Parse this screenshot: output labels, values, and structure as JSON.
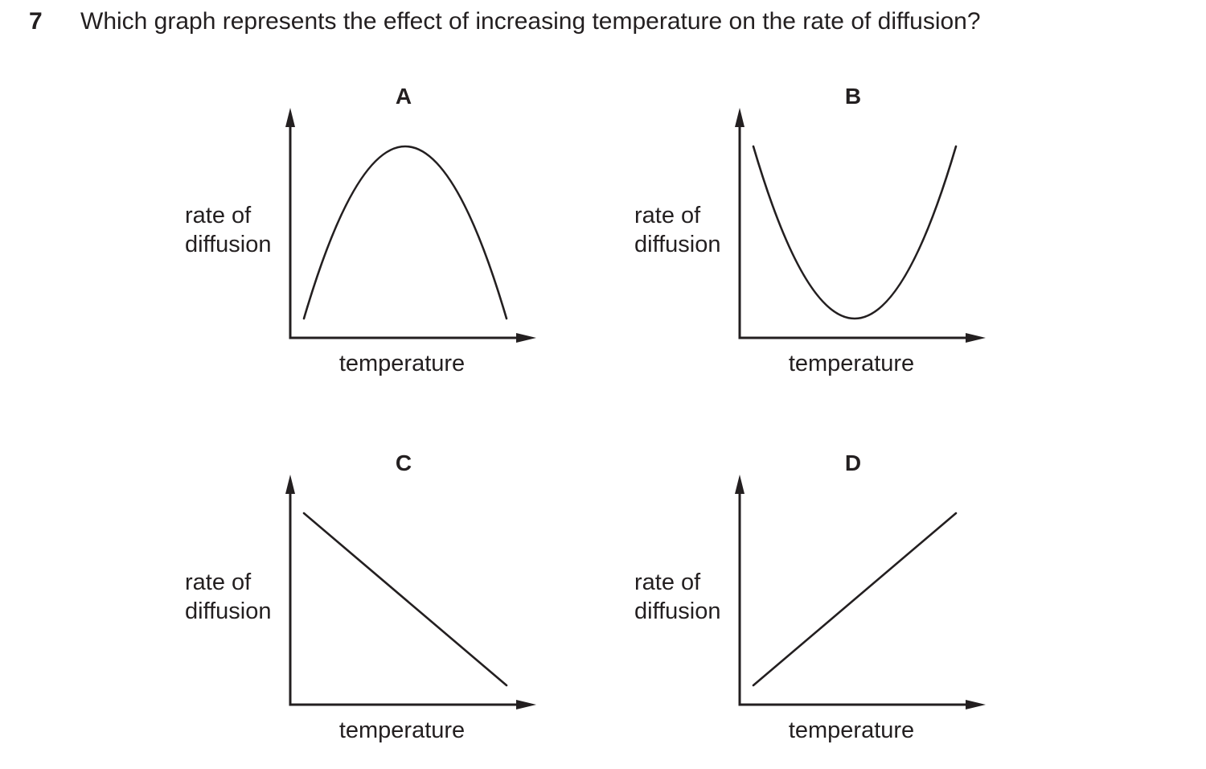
{
  "question": {
    "number": "7",
    "text": "Which graph represents the effect of increasing temperature on the rate of diffusion?"
  },
  "chart_data": [
    {
      "type": "line",
      "title": "A",
      "xlabel": "temperature",
      "ylabel_lines": [
        "rate of",
        "diffusion"
      ],
      "shape": "rise-then-fall",
      "x": [
        0.0,
        0.5,
        1.0
      ],
      "y": [
        0.1,
        1.0,
        0.1
      ],
      "axis_color": "#231f20"
    },
    {
      "type": "line",
      "title": "B",
      "xlabel": "temperature",
      "ylabel_lines": [
        "rate of",
        "diffusion"
      ],
      "shape": "fall-then-rise",
      "x": [
        0.0,
        0.5,
        1.0
      ],
      "y": [
        1.0,
        0.1,
        1.0
      ],
      "axis_color": "#231f20"
    },
    {
      "type": "line",
      "title": "C",
      "xlabel": "temperature",
      "ylabel_lines": [
        "rate of",
        "diffusion"
      ],
      "shape": "decreasing",
      "x": [
        0.0,
        1.0
      ],
      "y": [
        1.0,
        0.1
      ],
      "axis_color": "#231f20"
    },
    {
      "type": "line",
      "title": "D",
      "xlabel": "temperature",
      "ylabel_lines": [
        "rate of",
        "diffusion"
      ],
      "shape": "increasing",
      "x": [
        0.0,
        1.0
      ],
      "y": [
        0.1,
        1.0
      ],
      "axis_color": "#231f20"
    }
  ]
}
